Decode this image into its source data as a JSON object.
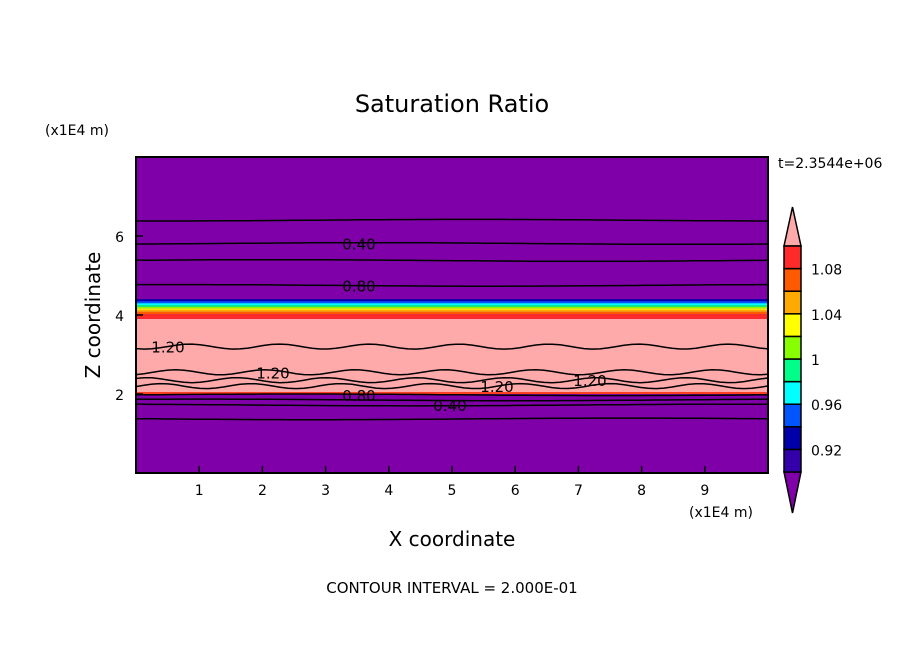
{
  "chart_data": {
    "type": "heatmap",
    "title": "Saturation Ratio",
    "xlabel": "X coordinate",
    "ylabel": "Z coordinate",
    "x_unit": "(x1E4 m)",
    "y_unit": "(x1E4 m)",
    "time_label": "t=2.3544e+06",
    "footer": "CONTOUR INTERVAL = 2.000E-01",
    "xlim": [
      0,
      10
    ],
    "ylim": [
      0,
      8
    ],
    "xticks": [
      "1",
      "2",
      "3",
      "4",
      "5",
      "6",
      "7",
      "8",
      "9"
    ],
    "yticks": [
      "2",
      "4",
      "6"
    ],
    "background_color": "#7f00a8",
    "bands": [
      {
        "z0": 2.05,
        "z1": 3.9,
        "color": "#ffaaaa",
        "label": "above 1.10"
      },
      {
        "z0": 2.0,
        "z1": 2.05,
        "color": "#ff4020",
        "label": "1.08-1.10"
      },
      {
        "z0": 3.9,
        "z1": 4.02,
        "color": "#ff2a2a",
        "label": "1.08-1.10"
      },
      {
        "z0": 4.02,
        "z1": 4.08,
        "color": "#ff5a00",
        "label": "1.06-1.08"
      },
      {
        "z0": 4.08,
        "z1": 4.13,
        "color": "#ffaa00",
        "label": "1.04-1.06"
      },
      {
        "z0": 4.13,
        "z1": 4.17,
        "color": "#ffff00",
        "label": "1.02-1.04"
      },
      {
        "z0": 4.17,
        "z1": 4.21,
        "color": "#88ff00",
        "label": "1.00-1.02"
      },
      {
        "z0": 4.21,
        "z1": 4.25,
        "color": "#00ff88",
        "label": "0.98-1.00"
      },
      {
        "z0": 4.25,
        "z1": 4.3,
        "color": "#00ffff",
        "label": "0.96-0.98"
      },
      {
        "z0": 4.3,
        "z1": 4.35,
        "color": "#0055ff",
        "label": "0.94-0.96"
      },
      {
        "z0": 4.35,
        "z1": 4.4,
        "color": "#0000aa",
        "label": "0.92-0.94"
      }
    ],
    "contours": [
      {
        "z": 6.4,
        "label": ""
      },
      {
        "z": 5.81,
        "label": "0.40"
      },
      {
        "z": 5.38,
        "label": ""
      },
      {
        "z": 4.75,
        "label": "0.80"
      },
      {
        "z": 3.2,
        "label": "1.20"
      },
      {
        "z": 2.55,
        "label": "1.20"
      },
      {
        "z": 2.2,
        "label": "1.20"
      },
      {
        "z": 2.35,
        "label": "1.20"
      },
      {
        "z": 1.98,
        "label": "0.80"
      },
      {
        "z": 1.85,
        "label": ""
      },
      {
        "z": 1.72,
        "label": "0.40"
      },
      {
        "z": 1.37,
        "label": ""
      }
    ],
    "colorbar": {
      "levels": [
        0.9,
        0.92,
        0.94,
        0.96,
        0.98,
        1.0,
        1.02,
        1.04,
        1.06,
        1.08,
        1.1
      ],
      "colors": [
        "#3300aa",
        "#0000aa",
        "#0055ff",
        "#00ffff",
        "#00ff88",
        "#88ff00",
        "#ffff00",
        "#ffaa00",
        "#ff5a00",
        "#ff2a2a"
      ],
      "under_color": "#7f00a8",
      "over_color": "#ffaaaa",
      "tick_labels": [
        "0.92",
        "0.96",
        "1",
        "1.04",
        "1.08"
      ],
      "tick_values": [
        0.92,
        0.96,
        1.0,
        1.04,
        1.08
      ]
    }
  }
}
